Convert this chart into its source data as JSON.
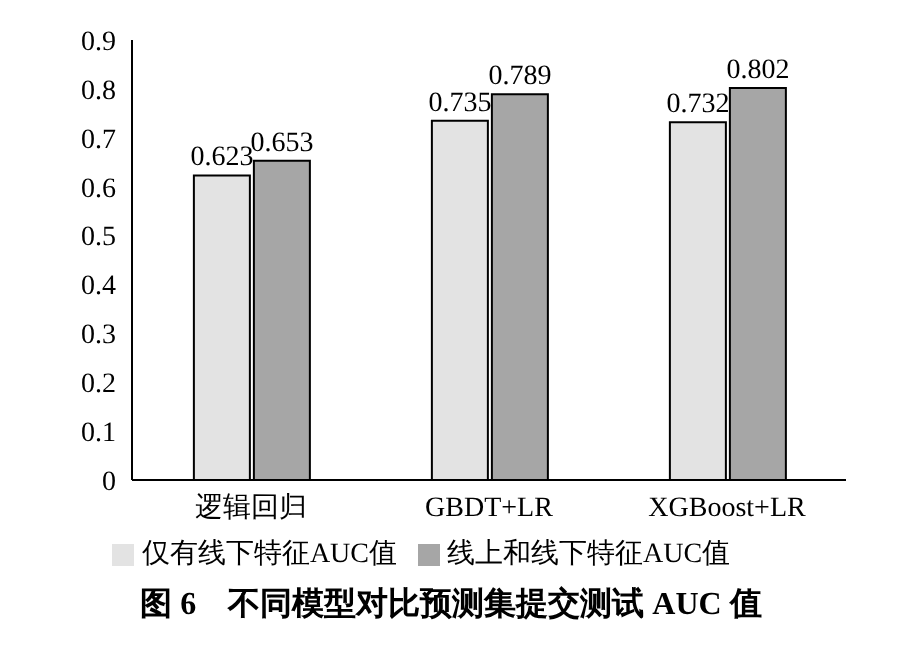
{
  "chart_data": {
    "type": "bar",
    "title": "图 6　不同模型对比预测集提交测试 AUC 值",
    "categories": [
      "逻辑回归",
      "GBDT+LR",
      "XGBoost+LR"
    ],
    "series": [
      {
        "name": "仅有线下特征AUC值",
        "color": "#e3e3e3",
        "values": [
          0.623,
          0.735,
          0.732
        ]
      },
      {
        "name": "线上和线下特征AUC值",
        "color": "#a6a6a6",
        "values": [
          0.653,
          0.789,
          0.802
        ]
      }
    ],
    "ylim": [
      0,
      0.9
    ],
    "yticks": [
      0,
      0.1,
      0.2,
      0.3,
      0.4,
      0.5,
      0.6,
      0.7,
      0.8,
      0.9
    ],
    "grid": false,
    "legend": "bottom",
    "data_labels": true
  }
}
